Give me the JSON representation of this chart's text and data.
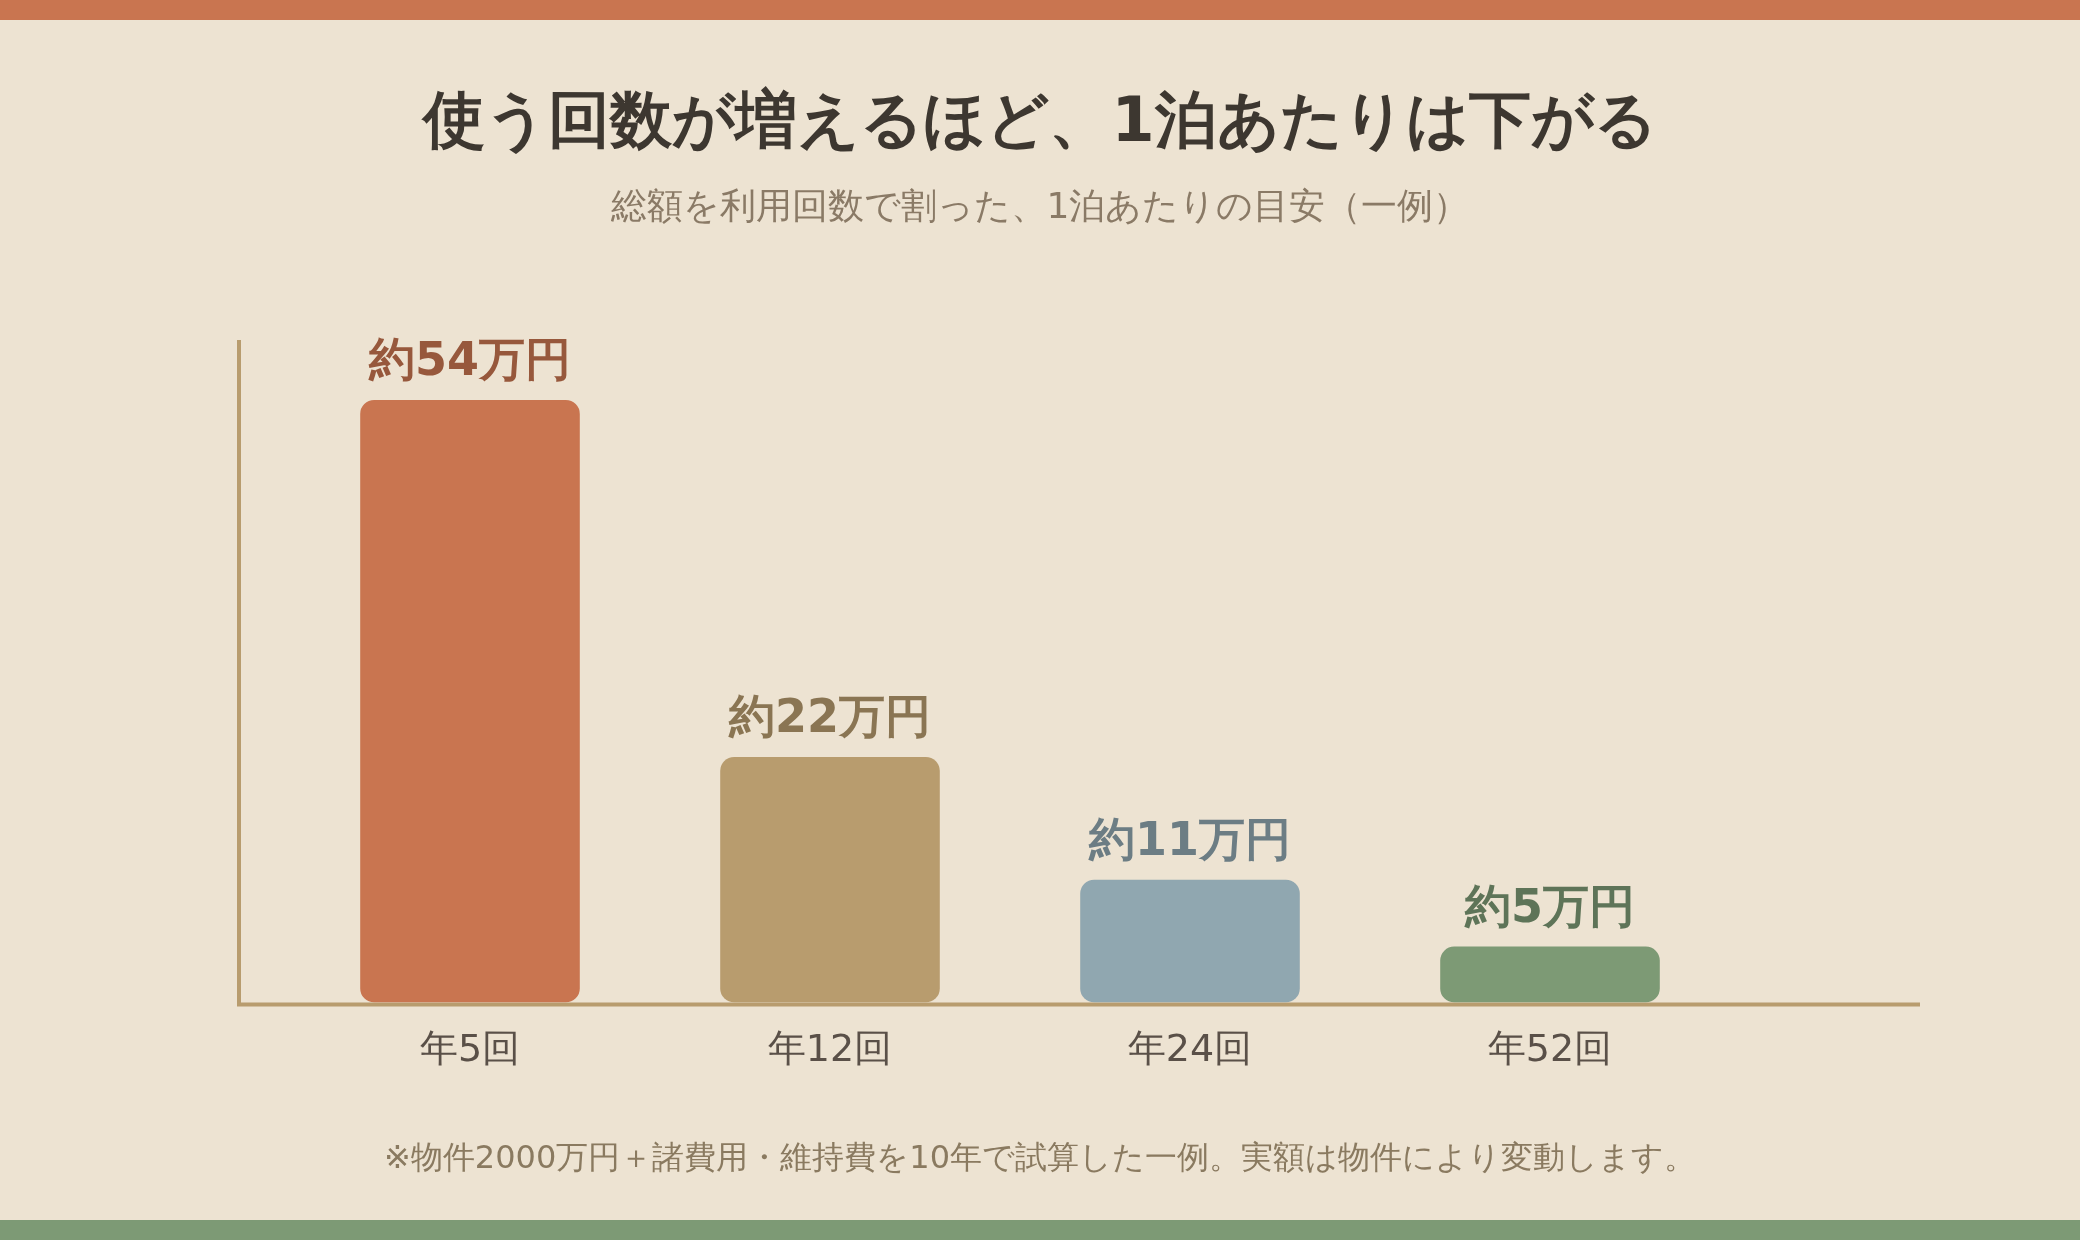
{
  "chart_data": {
    "type": "bar",
    "title": "使う回数が増えるほど、1泊あたりは下がる",
    "subtitle": "総額を利用回数で割った、1泊あたりの目安（一例）",
    "categories": [
      "年5回",
      "年12回",
      "年24回",
      "年52回"
    ],
    "values": [
      54,
      22,
      11,
      5
    ],
    "colors": [
      "#c97550",
      "#b89c6e",
      "#90a7b0",
      "#7d9a75"
    ],
    "value_labels": [
      "約54万円",
      "約22万円",
      "約11万円",
      "約5万円"
    ],
    "annotations": [
      "※物件2000万円＋諸費用・維持費を10年で試算した一例。実額は物件により変動します。"
    ],
    "grid": false,
    "legend": false
  }
}
